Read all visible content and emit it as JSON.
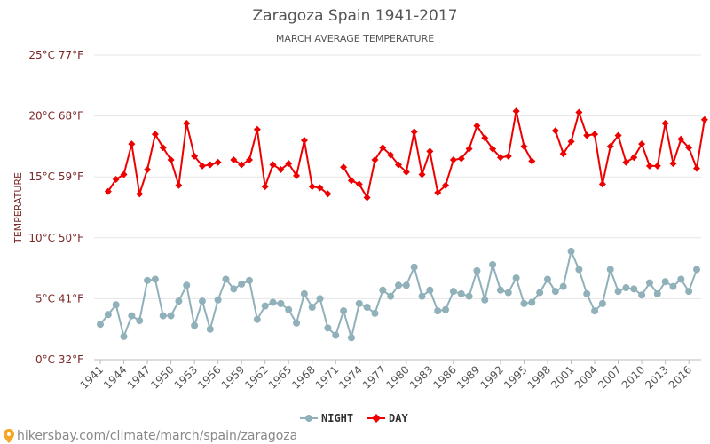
{
  "chart_data": {
    "type": "line",
    "title": "Zaragoza Spain 1941-2017",
    "subtitle": "MARCH AVERAGE TEMPERATURE",
    "ylabel": "TEMPERATURE",
    "xlabel": "",
    "ylim": [
      0,
      25
    ],
    "xlim": [
      1941,
      2017
    ],
    "yticks": [
      {
        "value": 0,
        "label": "0°C 32°F"
      },
      {
        "value": 5,
        "label": "5°C 41°F"
      },
      {
        "value": 10,
        "label": "10°C 50°F"
      },
      {
        "value": 15,
        "label": "15°C 59°F"
      },
      {
        "value": 20,
        "label": "20°C 68°F"
      },
      {
        "value": 25,
        "label": "25°C 77°F"
      }
    ],
    "xticks": [
      "1941",
      "1944",
      "1947",
      "1950",
      "1953",
      "1956",
      "1959",
      "1962",
      "1965",
      "1968",
      "1971",
      "1974",
      "1977",
      "1980",
      "1983",
      "1986",
      "1989",
      "1992",
      "1995",
      "1998",
      "2001",
      "2004",
      "2007",
      "2010",
      "2013",
      "2016"
    ],
    "grid": true,
    "legend_position": "bottom",
    "series": [
      {
        "name": "NIGHT",
        "color": "#90b0ba",
        "marker": "circle",
        "points": [
          [
            1941,
            2.9
          ],
          [
            1942,
            3.7
          ],
          [
            1943,
            4.5
          ],
          [
            1944,
            1.9
          ],
          [
            1945,
            3.6
          ],
          [
            1946,
            3.2
          ],
          [
            1947,
            6.5
          ],
          [
            1948,
            6.6
          ],
          [
            1949,
            3.6
          ],
          [
            1950,
            3.6
          ],
          [
            1951,
            4.8
          ],
          [
            1952,
            6.1
          ],
          [
            1953,
            2.8
          ],
          [
            1954,
            4.8
          ],
          [
            1955,
            2.5
          ],
          [
            1956,
            4.9
          ],
          [
            1957,
            6.6
          ],
          [
            1958,
            5.8
          ],
          [
            1959,
            6.2
          ],
          [
            1960,
            6.5
          ],
          [
            1961,
            3.3
          ],
          [
            1962,
            4.4
          ],
          [
            1963,
            4.7
          ],
          [
            1964,
            4.6
          ],
          [
            1965,
            4.1
          ],
          [
            1966,
            3.0
          ],
          [
            1967,
            5.4
          ],
          [
            1968,
            4.3
          ],
          [
            1969,
            5.0
          ],
          [
            1970,
            2.6
          ],
          [
            1971,
            2.0
          ],
          [
            1972,
            4.0
          ],
          [
            1973,
            1.8
          ],
          [
            1974,
            4.6
          ],
          [
            1975,
            4.3
          ],
          [
            1976,
            3.8
          ],
          [
            1977,
            5.7
          ],
          [
            1978,
            5.2
          ],
          [
            1979,
            6.1
          ],
          [
            1980,
            6.1
          ],
          [
            1981,
            7.6
          ],
          [
            1982,
            5.2
          ],
          [
            1983,
            5.7
          ],
          [
            1984,
            4.0
          ],
          [
            1985,
            4.1
          ],
          [
            1986,
            5.6
          ],
          [
            1987,
            5.4
          ],
          [
            1988,
            5.2
          ],
          [
            1989,
            7.3
          ],
          [
            1990,
            4.9
          ],
          [
            1991,
            7.8
          ],
          [
            1992,
            5.7
          ],
          [
            1993,
            5.5
          ],
          [
            1994,
            6.7
          ],
          [
            1995,
            4.6
          ],
          [
            1996,
            4.7
          ],
          [
            1997,
            5.5
          ],
          [
            1998,
            6.6
          ],
          [
            1999,
            5.6
          ],
          [
            2000,
            6.0
          ],
          [
            2001,
            8.9
          ],
          [
            2002,
            7.4
          ],
          [
            2003,
            5.4
          ],
          [
            2004,
            4.0
          ],
          [
            2005,
            4.6
          ],
          [
            2006,
            7.4
          ],
          [
            2007,
            5.6
          ],
          [
            2008,
            5.9
          ],
          [
            2009,
            5.8
          ],
          [
            2010,
            5.3
          ],
          [
            2011,
            6.3
          ],
          [
            2012,
            5.4
          ],
          [
            2013,
            6.4
          ],
          [
            2014,
            6.0
          ],
          [
            2015,
            6.6
          ],
          [
            2016,
            5.6
          ],
          [
            2017,
            7.4
          ]
        ]
      },
      {
        "name": "DAY",
        "color": "#ee0000",
        "marker": "diamond",
        "points": [
          [
            1942,
            13.8
          ],
          [
            1943,
            14.8
          ],
          [
            1944,
            15.2
          ],
          [
            1945,
            17.7
          ],
          [
            1946,
            13.6
          ],
          [
            1947,
            15.6
          ],
          [
            1948,
            18.5
          ],
          [
            1949,
            17.4
          ],
          [
            1950,
            16.4
          ],
          [
            1951,
            14.3
          ],
          [
            1952,
            19.4
          ],
          [
            1953,
            16.7
          ],
          [
            1954,
            15.9
          ],
          [
            1955,
            16.0
          ],
          [
            1956,
            16.2
          ],
          null,
          [
            1958,
            16.4
          ],
          [
            1959,
            16.0
          ],
          [
            1960,
            16.4
          ],
          [
            1961,
            18.9
          ],
          [
            1962,
            14.2
          ],
          [
            1963,
            16.0
          ],
          [
            1964,
            15.6
          ],
          [
            1965,
            16.1
          ],
          [
            1966,
            15.1
          ],
          [
            1967,
            18.0
          ],
          [
            1968,
            14.2
          ],
          [
            1969,
            14.1
          ],
          [
            1970,
            13.6
          ],
          null,
          [
            1972,
            15.8
          ],
          [
            1973,
            14.7
          ],
          [
            1974,
            14.4
          ],
          [
            1975,
            13.3
          ],
          [
            1976,
            16.4
          ],
          [
            1977,
            17.4
          ],
          [
            1978,
            16.8
          ],
          [
            1979,
            16.0
          ],
          [
            1980,
            15.4
          ],
          [
            1981,
            18.7
          ],
          [
            1982,
            15.2
          ],
          [
            1983,
            17.1
          ],
          [
            1984,
            13.7
          ],
          [
            1985,
            14.3
          ],
          [
            1986,
            16.4
          ],
          [
            1987,
            16.5
          ],
          [
            1988,
            17.3
          ],
          [
            1989,
            19.2
          ],
          [
            1990,
            18.2
          ],
          [
            1991,
            17.3
          ],
          [
            1992,
            16.6
          ],
          [
            1993,
            16.7
          ],
          [
            1994,
            20.4
          ],
          [
            1995,
            17.5
          ],
          [
            1996,
            16.3
          ],
          null,
          [
            1999,
            18.8
          ],
          [
            2000,
            16.9
          ],
          [
            2001,
            17.9
          ],
          [
            2002,
            20.3
          ],
          [
            2003,
            18.4
          ],
          [
            2004,
            18.5
          ],
          [
            2005,
            14.4
          ],
          [
            2006,
            17.5
          ],
          [
            2007,
            18.4
          ],
          [
            2008,
            16.2
          ],
          [
            2009,
            16.6
          ],
          [
            2010,
            17.7
          ],
          [
            2011,
            15.9
          ],
          [
            2012,
            15.9
          ],
          [
            2013,
            19.4
          ],
          [
            2014,
            16.1
          ],
          [
            2015,
            18.1
          ],
          [
            2016,
            17.4
          ],
          [
            2017,
            15.7
          ],
          [
            2018,
            19.7
          ]
        ]
      }
    ]
  },
  "source_text": "hikersbay.com/climate/march/spain/zaragoza",
  "source_icon": "map-pin-icon",
  "source_icon_color": "#f5a623"
}
